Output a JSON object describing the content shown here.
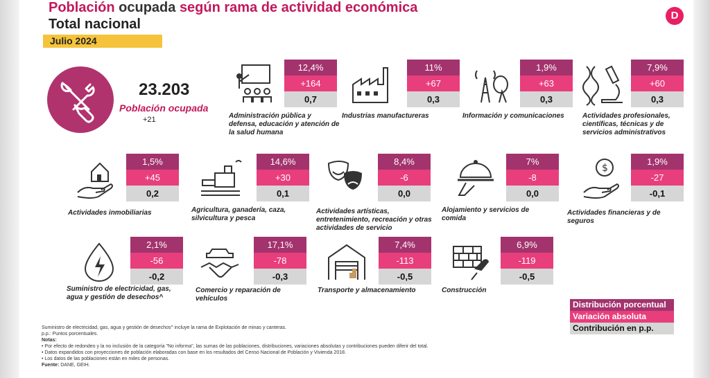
{
  "header": {
    "title_part1": "Población",
    "title_part2": " ocupada ",
    "title_part3": "según rama de actividad económica",
    "subtitle": "Total nacional",
    "period": "Julio 2024",
    "logo_letter": "D"
  },
  "totals": {
    "value": "23.203",
    "label": "Población ocupada",
    "delta": "+21"
  },
  "chart_data": {
    "type": "table",
    "title": "Población ocupada según rama de actividad económica - Total nacional - Julio 2024",
    "columns": [
      "Distribución porcentual",
      "Variación absoluta",
      "Contribución en p.p."
    ],
    "rows": [
      {
        "sector": "Administración pública y defensa, educación y atención de la salud humana",
        "share": "12,4%",
        "change": "+164",
        "contribution": "0,7",
        "icon": "teacher-icon"
      },
      {
        "sector": "Industrias manufactureras",
        "share": "11%",
        "change": "+67",
        "contribution": "0,3",
        "icon": "factory-icon"
      },
      {
        "sector": "Información y comunicaciones",
        "share": "1,9%",
        "change": "+63",
        "contribution": "0,3",
        "icon": "antenna-icon"
      },
      {
        "sector": "Actividades profesionales, científicas, técnicas y de servicios administrativos",
        "share": "7,9%",
        "change": "+60",
        "contribution": "0,3",
        "icon": "microscope-icon"
      },
      {
        "sector": "Actividades inmobiliarias",
        "share": "1,5%",
        "change": "+45",
        "contribution": "0,2",
        "icon": "house-hand-icon"
      },
      {
        "sector": "Agricultura, ganadería, caza, silvicultura y pesca",
        "share": "14,6%",
        "change": "+30",
        "contribution": "0,1",
        "icon": "tractor-icon"
      },
      {
        "sector": "Actividades artísticas, entretenimiento, recreación y otras actividades de servicio",
        "share": "8,4%",
        "change": "-6",
        "contribution": "0,0",
        "icon": "masks-icon"
      },
      {
        "sector": "Alojamiento y servicios de comida",
        "share": "7%",
        "change": "-8",
        "contribution": "0,0",
        "icon": "cloche-icon"
      },
      {
        "sector": "Actividades financieras y de seguros",
        "share": "1,9%",
        "change": "-27",
        "contribution": "-0,1",
        "icon": "money-hand-icon"
      },
      {
        "sector": "Suministro de electricidad, gas, agua y gestión de desechos^",
        "share": "2,1%",
        "change": "-56",
        "contribution": "-0,2",
        "icon": "energy-drop-icon"
      },
      {
        "sector": "Comercio y reparación de vehículos",
        "share": "17,1%",
        "change": "-78",
        "contribution": "-0,3",
        "icon": "handshake-car-icon"
      },
      {
        "sector": "Transporte y almacenamiento",
        "share": "7,4%",
        "change": "-113",
        "contribution": "-0,5",
        "icon": "warehouse-icon"
      },
      {
        "sector": "Construcción",
        "share": "6,9%",
        "change": "-119",
        "contribution": "-0,5",
        "icon": "bricks-icon"
      }
    ]
  },
  "legend": {
    "share": "Distribución porcentual",
    "change": "Variación absoluta",
    "contribution": "Contribución en p.p."
  },
  "notes": {
    "line1": "Suministro de electricidad, gas, agua y gestión de desechos^ incluye la rama de Explotación de minas y canteras.",
    "line2": "p.p.: Puntos porcentuales.",
    "heading": "Notas:",
    "note1": "• Por efecto de redondeo y la no inclusión de la categoría \"No informa\", las sumas de las poblaciones, distribuciones, variaciones absolutas y contribuciones pueden diferir del total.",
    "note2": "• Datos expandidos con proyecciones de población elaboradas con base en los resultados del Censo Nacional de Población y Vivienda 2018.",
    "note3": "• Los datos de las poblaciones están en miles de personas.",
    "source_label": "Fuente:",
    "source": " DANE, GEIH."
  },
  "colors": {
    "share": "#a3336d",
    "change": "#e83e7c",
    "contribution": "#d6d6d6",
    "accent": "#c2185b"
  }
}
